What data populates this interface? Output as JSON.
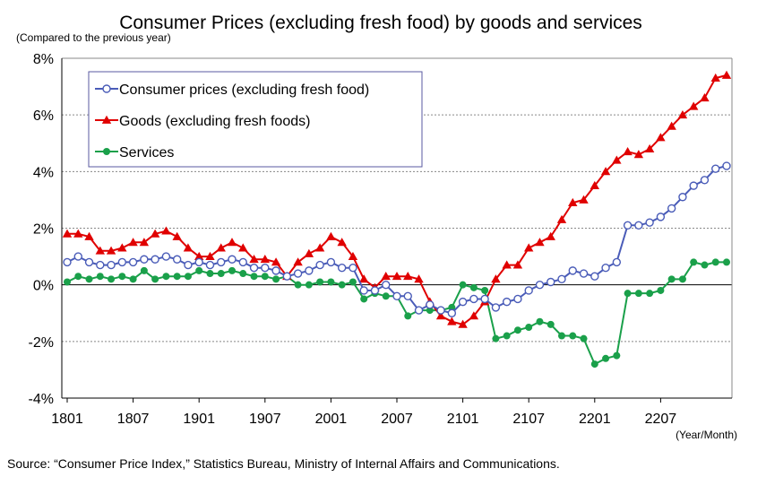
{
  "chart_data": {
    "type": "line",
    "title": "Consumer Prices (excluding fresh food) by goods and services",
    "ylabel": "(Compared to the previous year)",
    "xlabel": "(Year/Month)",
    "ylim": [
      -4,
      8
    ],
    "y_ticks": [
      "-4%",
      "-2%",
      "0%",
      "2%",
      "4%",
      "6%",
      "8%"
    ],
    "y_tick_values": [
      -4,
      -2,
      0,
      2,
      4,
      6,
      8
    ],
    "x_tick_labels": [
      "1801",
      "1807",
      "1901",
      "1907",
      "2001",
      "2007",
      "2101",
      "2107",
      "2201",
      "2207"
    ],
    "x_tick_every": 6,
    "grid": true,
    "legend_position": "top-left",
    "x": [
      "1801",
      "1802",
      "1803",
      "1804",
      "1805",
      "1806",
      "1807",
      "1808",
      "1809",
      "1810",
      "1811",
      "1812",
      "1901",
      "1902",
      "1903",
      "1904",
      "1905",
      "1906",
      "1907",
      "1908",
      "1909",
      "1910",
      "1911",
      "1912",
      "2001",
      "2002",
      "2003",
      "2004",
      "2005",
      "2006",
      "2007",
      "2008",
      "2009",
      "2010",
      "2011",
      "2012",
      "2101",
      "2102",
      "2103",
      "2104",
      "2105",
      "2106",
      "2107",
      "2108",
      "2109",
      "2110",
      "2111",
      "2112",
      "2201",
      "2202",
      "2203",
      "2204",
      "2205",
      "2206",
      "2207",
      "2208",
      "2209",
      "2210",
      "2211",
      "2212",
      "2301"
    ],
    "series": [
      {
        "name": "Consumer prices (excluding fresh food)",
        "color": "#4a5cb8",
        "marker": "open-circle",
        "values": [
          0.8,
          1.0,
          0.8,
          0.7,
          0.7,
          0.8,
          0.8,
          0.9,
          0.9,
          1.0,
          0.9,
          0.7,
          0.8,
          0.7,
          0.8,
          0.9,
          0.8,
          0.6,
          0.6,
          0.5,
          0.3,
          0.4,
          0.5,
          0.7,
          0.8,
          0.6,
          0.6,
          -0.2,
          -0.2,
          0.0,
          -0.4,
          -0.4,
          -0.9,
          -0.7,
          -0.9,
          -1.0,
          -0.6,
          -0.5,
          -0.5,
          -0.8,
          -0.6,
          -0.5,
          -0.2,
          0.0,
          0.1,
          0.2,
          0.5,
          0.4,
          0.3,
          0.6,
          0.8,
          2.1,
          2.1,
          2.2,
          2.4,
          2.7,
          3.1,
          3.5,
          3.7,
          4.1,
          4.2
        ]
      },
      {
        "name": "Goods (excluding fresh foods)",
        "color": "#e00000",
        "marker": "triangle",
        "values": [
          1.8,
          1.8,
          1.7,
          1.2,
          1.2,
          1.3,
          1.5,
          1.5,
          1.8,
          1.9,
          1.7,
          1.3,
          1.0,
          1.0,
          1.3,
          1.5,
          1.3,
          0.9,
          0.9,
          0.8,
          0.3,
          0.8,
          1.1,
          1.3,
          1.7,
          1.5,
          1.0,
          0.2,
          -0.1,
          0.3,
          0.3,
          0.3,
          0.2,
          -0.6,
          -1.1,
          -1.3,
          -1.4,
          -1.1,
          -0.6,
          0.2,
          0.7,
          0.7,
          1.3,
          1.5,
          1.7,
          2.3,
          2.9,
          3.0,
          3.5,
          4.0,
          4.4,
          4.7,
          4.6,
          4.8,
          5.2,
          5.6,
          6.0,
          6.3,
          6.6,
          7.3,
          7.4
        ]
      },
      {
        "name": "Services",
        "color": "#1aa04a",
        "marker": "filled-circle",
        "values": [
          0.1,
          0.3,
          0.2,
          0.3,
          0.2,
          0.3,
          0.2,
          0.5,
          0.2,
          0.3,
          0.3,
          0.3,
          0.5,
          0.4,
          0.4,
          0.5,
          0.4,
          0.3,
          0.3,
          0.2,
          0.3,
          0.0,
          0.0,
          0.1,
          0.1,
          0.0,
          0.1,
          -0.5,
          -0.3,
          -0.4,
          -0.4,
          -1.1,
          -0.9,
          -0.9,
          -0.9,
          -0.8,
          0.0,
          -0.1,
          -0.2,
          -1.9,
          -1.8,
          -1.6,
          -1.5,
          -1.3,
          -1.4,
          -1.8,
          -1.8,
          -1.9,
          -2.8,
          -2.6,
          -2.5,
          -0.3,
          -0.3,
          -0.3,
          -0.2,
          0.2,
          0.2,
          0.8,
          0.7,
          0.8,
          0.8
        ]
      }
    ]
  },
  "source": "Source: “Consumer Price Index,” Statistics Bureau, Ministry of Internal Affairs and Communications."
}
